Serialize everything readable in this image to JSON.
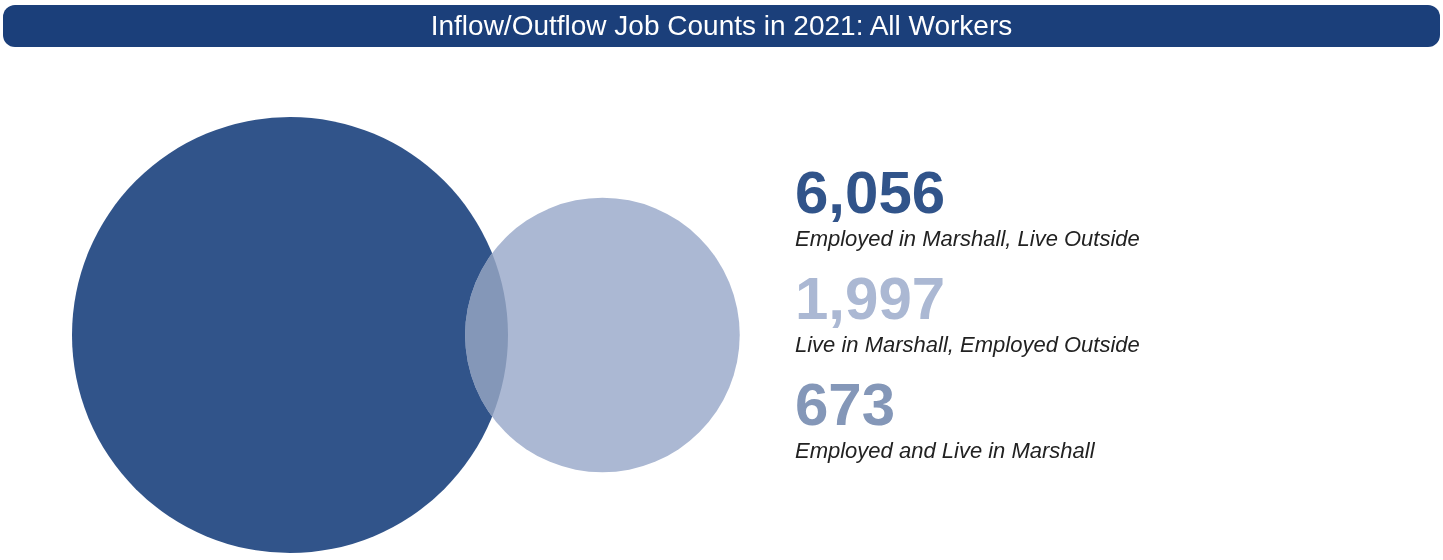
{
  "chart_data": {
    "type": "other",
    "title": "Inflow/Outflow Job Counts in 2021: All Workers",
    "categories": [
      "Employed in Marshall, Live Outside",
      "Live in Marshall, Employed Outside",
      "Employed and Live in Marshall"
    ],
    "values": [
      6056,
      1997,
      673
    ],
    "value_labels": [
      "6,056",
      "1,997",
      "673"
    ],
    "colors": [
      "#31548a",
      "#abb8d3",
      "#8497b8"
    ]
  }
}
